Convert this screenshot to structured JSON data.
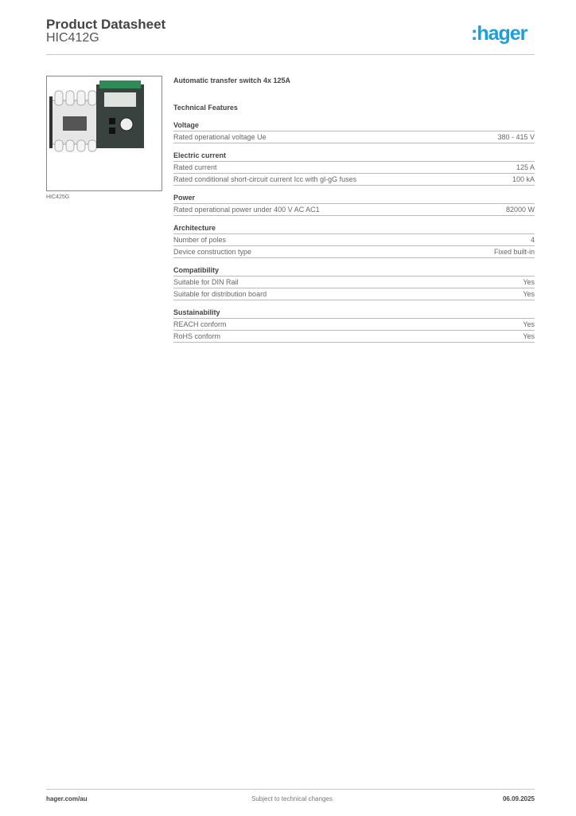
{
  "header": {
    "title": "Product Datasheet",
    "subtitle": "HIC412G",
    "logo": ":hager",
    "logo_color": "#1aa0dc"
  },
  "image": {
    "caption": "HIC425G"
  },
  "product": {
    "name": "Automatic transfer switch 4x 125A",
    "features_heading": "Technical Features"
  },
  "sections": [
    {
      "title": "Voltage",
      "rows": [
        {
          "label": "Rated operational voltage Ue",
          "value": "380 - 415 V"
        }
      ]
    },
    {
      "title": "Electric current",
      "rows": [
        {
          "label": "Rated current",
          "value": "125 A"
        },
        {
          "label": "Rated conditional short-circuit current Icc with gl-gG fuses",
          "value": "100 kA"
        }
      ]
    },
    {
      "title": "Power",
      "rows": [
        {
          "label": "Rated operational power under 400 V AC AC1",
          "value": "82000 W"
        }
      ]
    },
    {
      "title": "Architecture",
      "rows": [
        {
          "label": "Number of poles",
          "value": "4"
        },
        {
          "label": "Device construction type",
          "value": "Fixed built-in"
        }
      ]
    },
    {
      "title": "Compatibility",
      "rows": [
        {
          "label": "Suitable for DIN Rail",
          "value": "Yes"
        },
        {
          "label": "Suitable for distribution board",
          "value": "Yes"
        }
      ]
    },
    {
      "title": "Sustainability",
      "rows": [
        {
          "label": "REACH conform",
          "value": "Yes"
        },
        {
          "label": "RoHS conform",
          "value": "Yes"
        }
      ]
    }
  ],
  "footer": {
    "website": "hager.com/au",
    "notice": "Subject to technical changes",
    "date": "06.09.2025"
  }
}
